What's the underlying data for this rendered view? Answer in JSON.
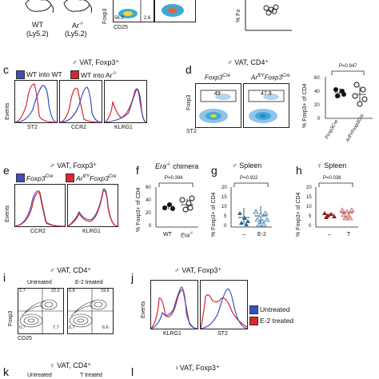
{
  "top": {
    "mouse1": {
      "name": "WT",
      "sub": "(Ly5.2)"
    },
    "mouse2": {
      "name": "Ar",
      "sup": "-/-",
      "sub": "(Ly5.2)"
    },
    "flow_ylabel": "Foxp3",
    "flow_xlabel": "CD25",
    "gate1": "56.3",
    "gate2": "2.6",
    "right_ylabel": "% Fo"
  },
  "c": {
    "letter": "c",
    "title": "♂ VAT, Foxp3⁺",
    "legend1": "WT into WT",
    "legend2": "WT into Ar",
    "legend2_sup": "-/-",
    "ylabel": "Events",
    "markers": [
      "ST2",
      "CCR2",
      "KLRG1"
    ],
    "colors": {
      "blue": "#3a4fc0",
      "red": "#d9252f"
    }
  },
  "d": {
    "letter": "d",
    "title": "♂ VAT, CD4⁺",
    "plot1_title": "Foxp3",
    "plot1_sup": "Cre",
    "plot2_title": "Ar",
    "plot2_mid": "fl/Y",
    "plot2_title2": "Foxp3",
    "plot2_sup": "Cre",
    "gate1": "49",
    "gate2": "47.9",
    "ylabel": "Foxp3",
    "xlabel": "ST2",
    "pval": "P=0.947",
    "dot_ylabel": "% Foxp3+ of CD4",
    "xcats": [
      "Foxp3Cre",
      "ArflYFoxp3Cre"
    ],
    "yticks": [
      "60",
      "40",
      "20",
      "0"
    ]
  },
  "e": {
    "letter": "e",
    "title": "♂ VAT, Foxp3⁺",
    "legend1": "Foxp3",
    "legend1_sup": "Cre",
    "legend2": "Ar",
    "legend2_mid": "fl/Y",
    "legend2b": "Foxp3",
    "legend2_sup": "Cre",
    "ylabel": "Events",
    "markers": [
      "CCR2",
      "KLRG1"
    ]
  },
  "f": {
    "letter": "f",
    "title": "Era",
    "title_sup": "-/-",
    "title2": " chimera",
    "pval": "P=0.394",
    "ylabel": "% Foxp3+ of CD4",
    "yticks": [
      "60",
      "40",
      "20",
      "0"
    ],
    "xcats": [
      "WT",
      "Era"
    ],
    "xcat2_sup": "-/-"
  },
  "g": {
    "letter": "g",
    "title": "♂ Spleen",
    "pval": "P=0.922",
    "ylabel": "% Foxp3+ of CD4",
    "yticks": [
      "20",
      "15",
      "10",
      "5",
      "0"
    ],
    "xcats": [
      "–",
      "E-2"
    ]
  },
  "h": {
    "letter": "h",
    "title": "♀ Spleen",
    "pval": "P=0.038",
    "ylabel": "% Foxp3+ of CD4",
    "yticks": [
      "20",
      "15",
      "10",
      "5",
      "0"
    ],
    "xcats": [
      "–",
      "T"
    ]
  },
  "i": {
    "letter": "i",
    "title": "♂ VAT, CD4⁺",
    "cond1": "Untreated",
    "cond2": "E-2 treated",
    "q1": [
      "2.7",
      "22.0",
      "0.7",
      "7.7"
    ],
    "q2": [
      "6.8",
      "19.6",
      "0.7",
      "6.6"
    ],
    "ylabel": "Foxp3",
    "xlabel": "CD25"
  },
  "j": {
    "letter": "j",
    "title": "♂ VAT, Foxp3⁺",
    "ylabel": "Events",
    "markers": [
      "KLRG1",
      "ST2"
    ],
    "legend1": "Untreated",
    "legend2": "E-2 treated"
  },
  "k": {
    "letter": "k",
    "title": "♀ VAT, CD4⁺",
    "cond1": "Untreated",
    "cond2": "T treated"
  },
  "l": {
    "letter": "l",
    "title": "♀VAT, Foxp3⁺"
  }
}
